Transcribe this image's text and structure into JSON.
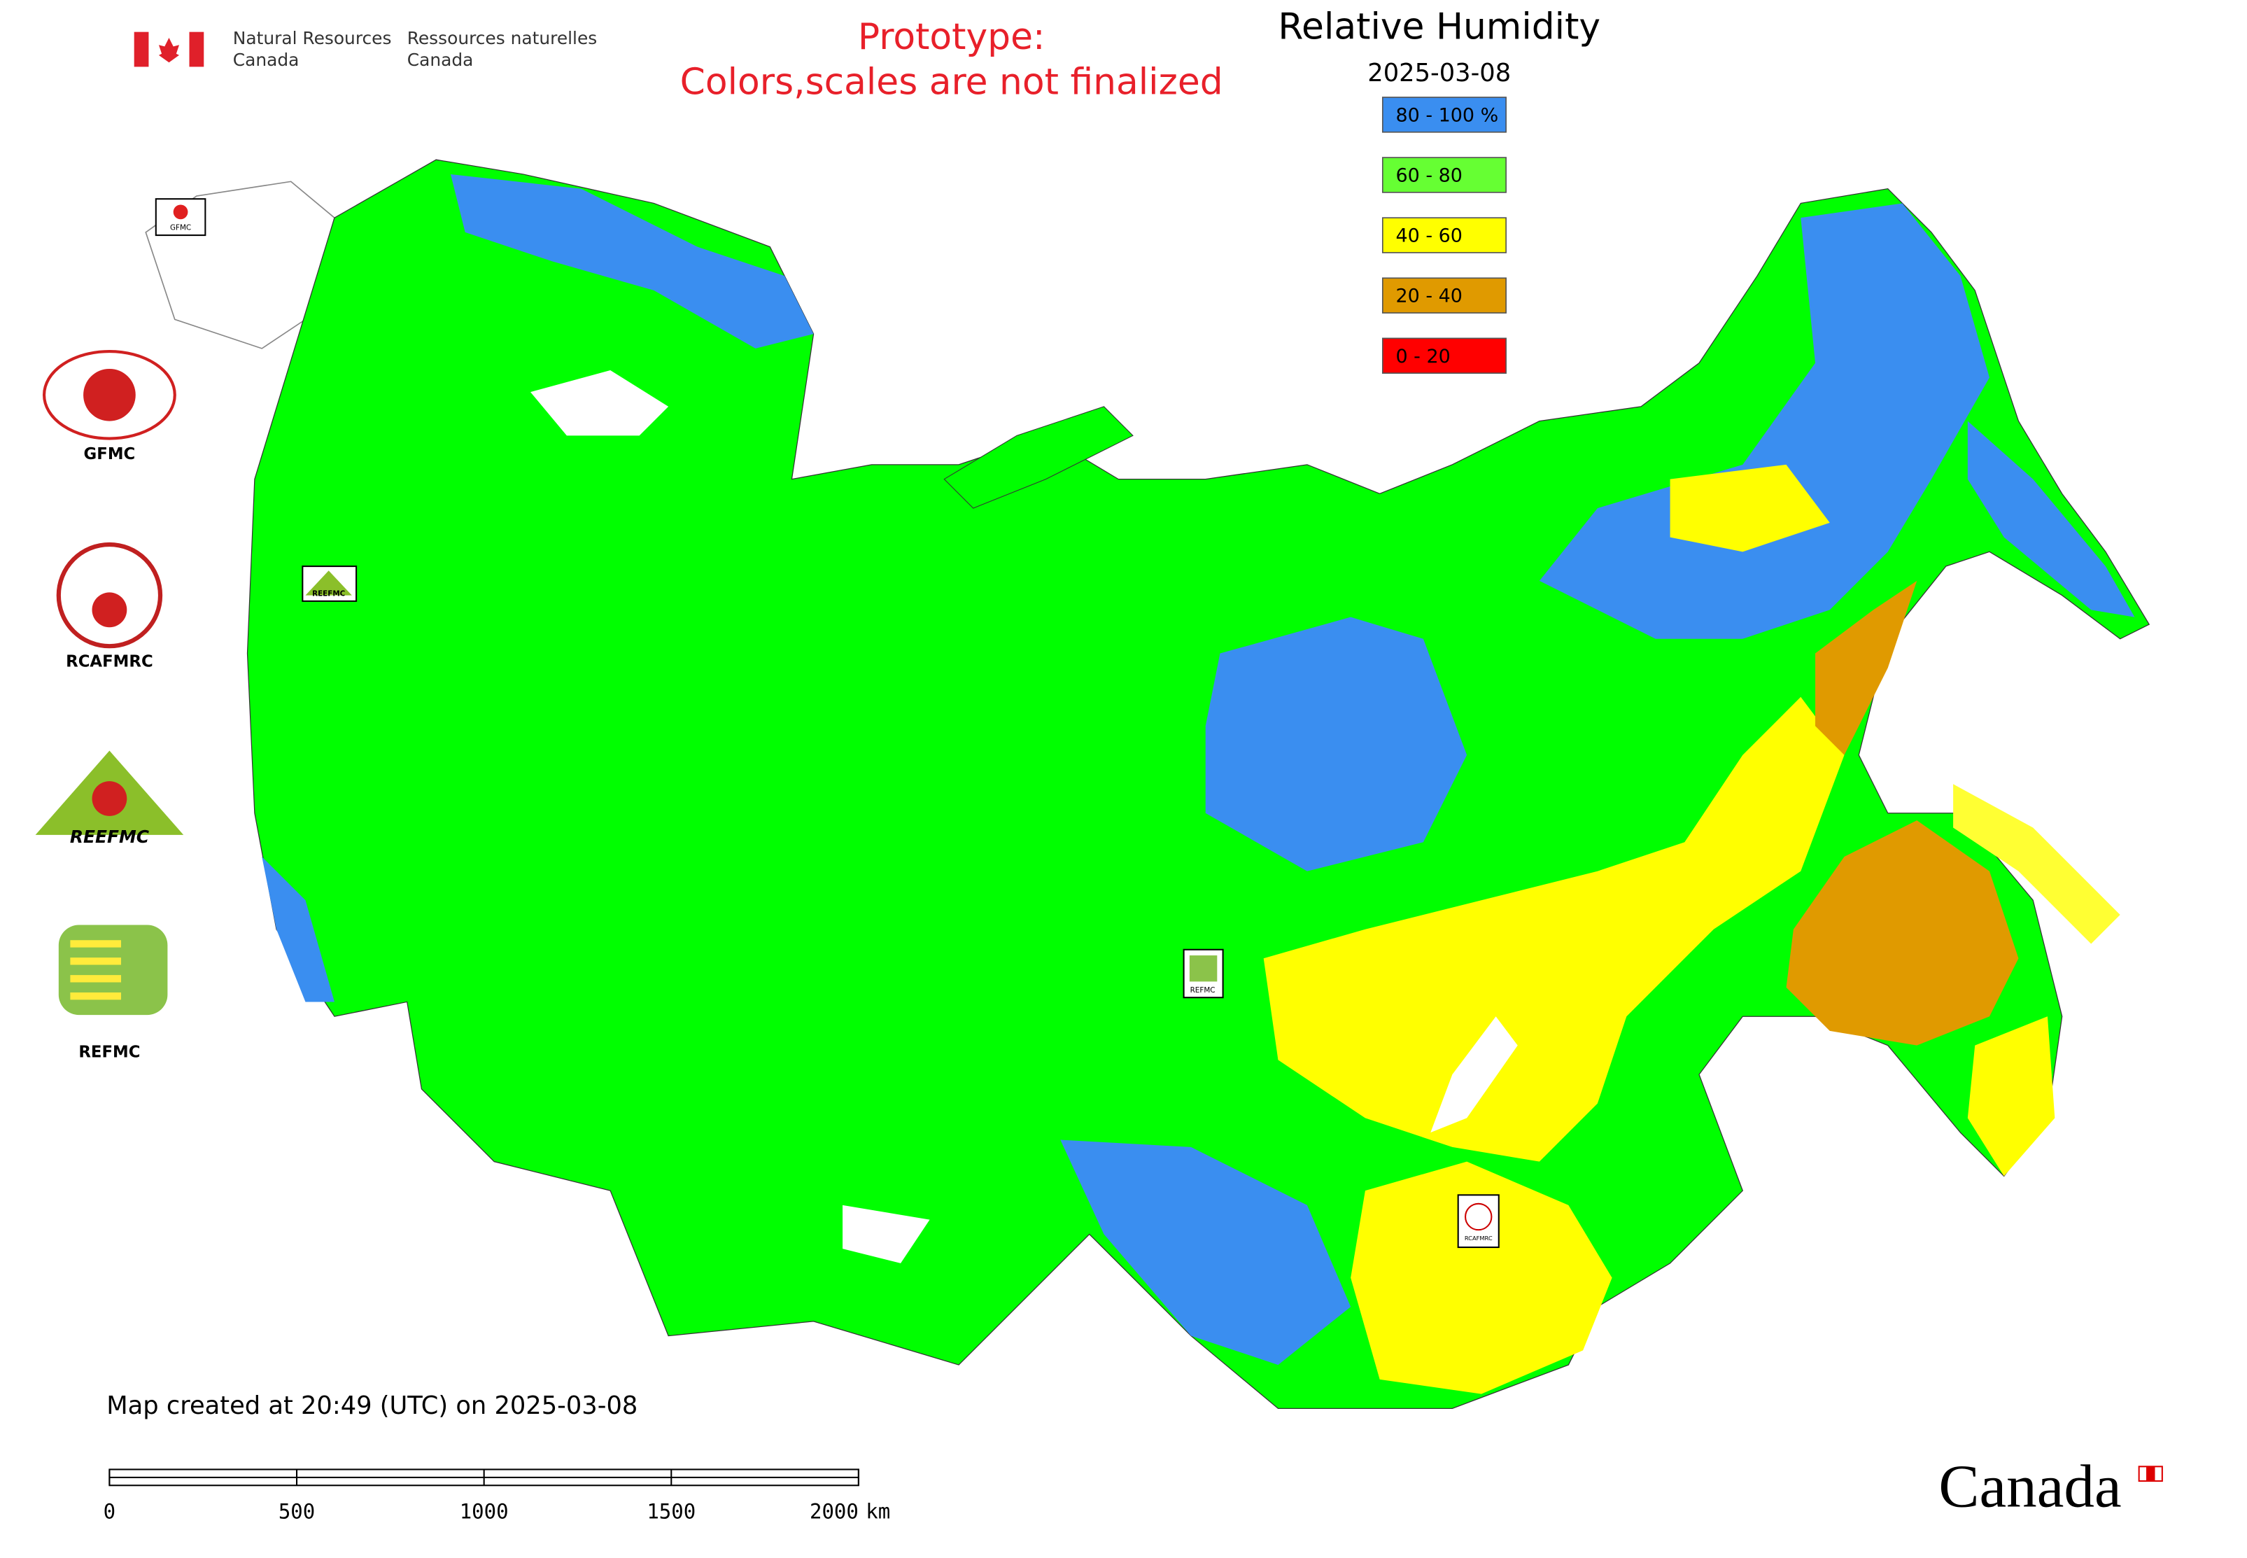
{
  "header": {
    "agency_en": [
      "Natural Resources",
      "Canada"
    ],
    "agency_fr": [
      "Ressources naturelles",
      "Canada"
    ],
    "notice": [
      "Prototype:",
      "Colors,scales are not finalized"
    ]
  },
  "title": "Relative Humidity",
  "date": "2025-03-08",
  "legend": [
    {
      "label": "80 - 100 %",
      "color": "#3a8ef0"
    },
    {
      "label": "60 - 80",
      "color": "#66ff33"
    },
    {
      "label": "40 - 60",
      "color": "#ffff00"
    },
    {
      "label": "20 - 40",
      "color": "#e09a00"
    },
    {
      "label": "0 - 20",
      "color": "#ff0000"
    }
  ],
  "logos": {
    "gfmc": "GFMC",
    "rcafmrc": "RCAFMRC",
    "reefmc": "REEFMC",
    "refmc": "REFMC"
  },
  "footer": {
    "created": "Map created at 20:49 (UTC) on 2025-03-08",
    "scale": {
      "ticks": [
        0,
        500,
        1000,
        1500,
        2000
      ],
      "unit": "km"
    },
    "wordmark": "Canada"
  }
}
